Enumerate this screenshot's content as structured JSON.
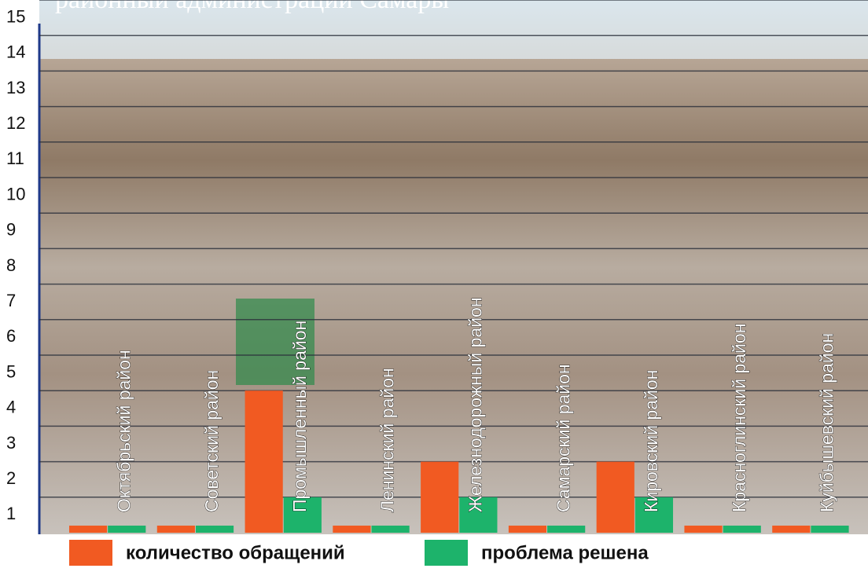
{
  "chart_data": {
    "type": "bar",
    "title": "районный администраций Самары",
    "categories": [
      "Октябрьский район",
      "Советский район",
      "Промышленный район",
      "Ленинский район",
      "Железнодорожный район",
      "Самарский район",
      "Кировский район",
      "Красноглинский район",
      "Куйбышевский район"
    ],
    "series": [
      {
        "name": "количество обращений",
        "color": "#f15a22",
        "values": [
          0.2,
          0.2,
          4,
          0.2,
          2,
          0.2,
          2,
          0.2,
          0.2
        ]
      },
      {
        "name": "проблема решена",
        "color": "#1db36b",
        "values": [
          0.2,
          0.2,
          1,
          0.2,
          1,
          0.2,
          1,
          0.2,
          0.2
        ]
      }
    ],
    "ylim": [
      0,
      15
    ],
    "yticks": [
      1,
      2,
      3,
      4,
      5,
      6,
      7,
      8,
      9,
      10,
      11,
      12,
      13,
      14,
      15
    ],
    "grid": true
  }
}
